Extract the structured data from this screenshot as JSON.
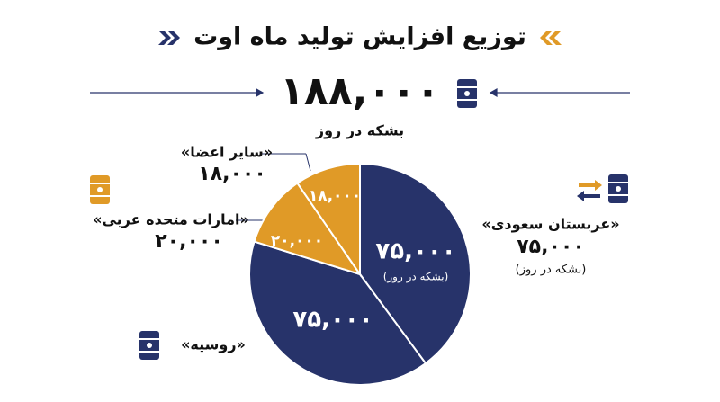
{
  "chart_data": {
    "type": "pie",
    "title": "توزیع افزایش تولید ماه اوت",
    "total": 188000,
    "total_label": "۱۸۸,۰۰۰",
    "total_unit": "بشکه در روز",
    "unit_label": "(بشکه در روز)",
    "categories": [
      "«عربستان سعودی»",
      "«روسیه»",
      "«امارات متحده عربی»",
      "«سایر اعضا»"
    ],
    "values": [
      75000,
      75000,
      20000,
      18000
    ],
    "value_labels": [
      "۷۵,۰۰۰",
      "۷۵,۰۰۰",
      "۲۰,۰۰۰",
      "۱۸,۰۰۰"
    ],
    "colors": [
      "#27336a",
      "#27336a",
      "#e09a27",
      "#e09a27"
    ]
  }
}
